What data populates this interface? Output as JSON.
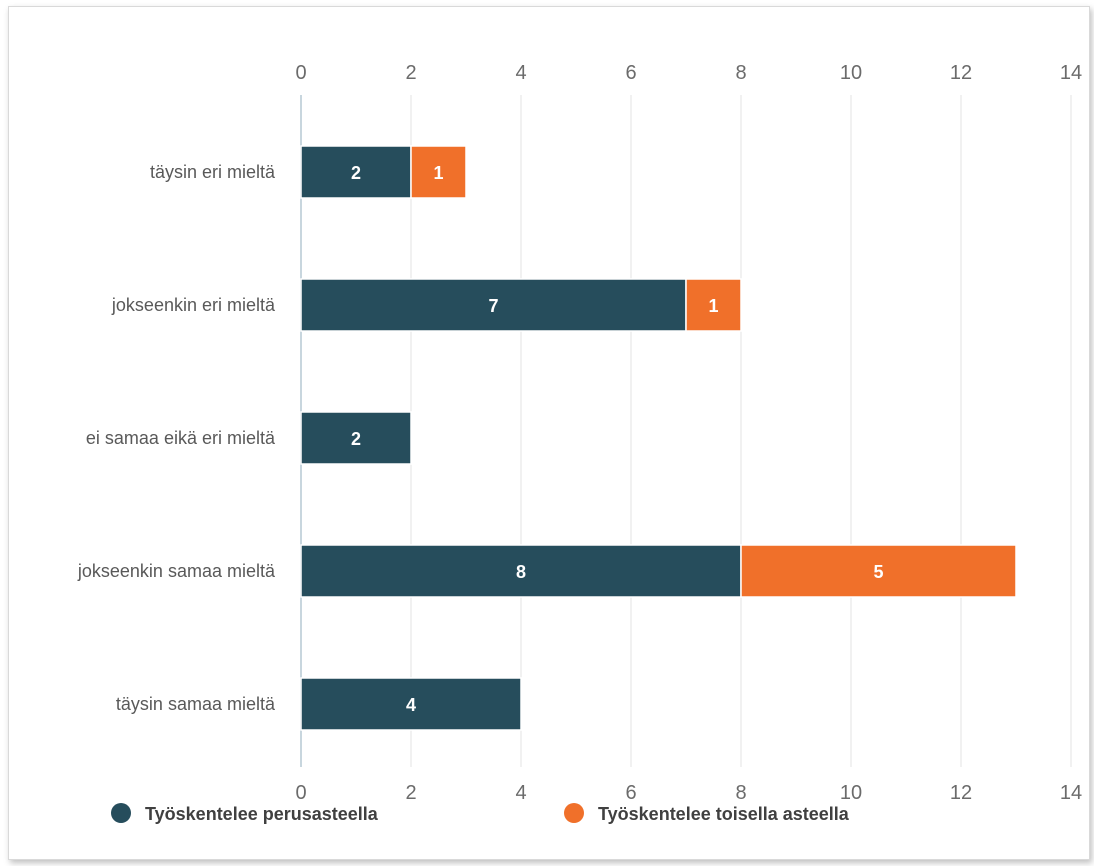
{
  "chart_data": {
    "type": "bar",
    "orientation": "horizontal",
    "stacked": true,
    "title": "",
    "xlabel": "",
    "ylabel": "",
    "categories": [
      "täysin eri mieltä",
      "jokseenkin eri mieltä",
      "ei samaa eikä eri mieltä",
      "jokseenkin samaa mieltä",
      "täysin samaa mieltä"
    ],
    "series": [
      {
        "name": "Työskentelee perusasteella",
        "color": "#264d5c",
        "values": [
          2,
          7,
          2,
          8,
          4
        ]
      },
      {
        "name": "Työskentelee toisella asteella",
        "color": "#f0702a",
        "values": [
          1,
          1,
          0,
          5,
          0
        ]
      }
    ],
    "xlim": [
      0,
      14
    ],
    "xticks": [
      0,
      2,
      4,
      6,
      8,
      10,
      12,
      14
    ],
    "axis_position": "top-and-bottom",
    "grid": true,
    "legend_position": "bottom"
  }
}
